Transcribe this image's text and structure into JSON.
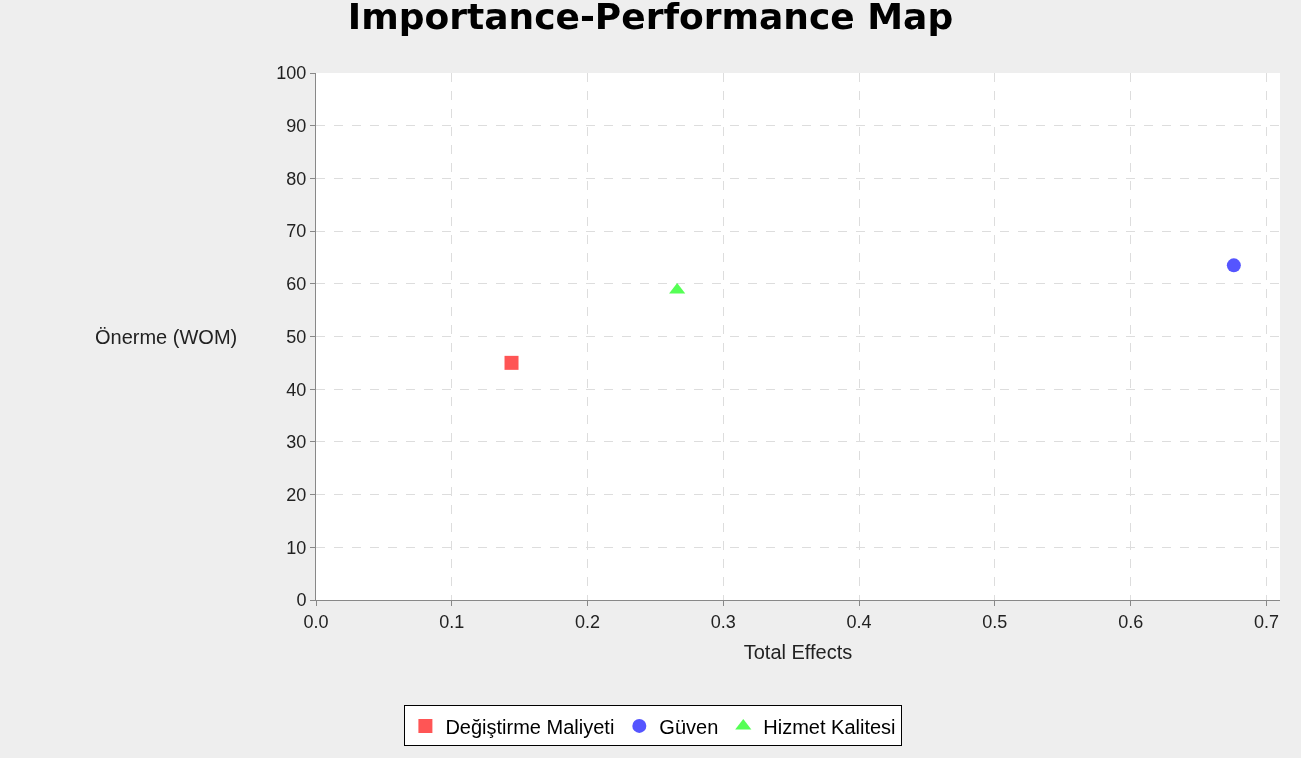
{
  "chart_data": {
    "type": "scatter",
    "title": "Importance-Performance Map",
    "xlabel": "Total Effects",
    "ylabel": "Önerme (WOM)",
    "xlim": [
      0,
      0.71
    ],
    "xticks": [
      {
        "value": 0,
        "label": "0.0"
      },
      0.1,
      0.2,
      0.3,
      0.4,
      0.5,
      0.6,
      0.7
    ],
    "ylim": [
      0,
      100
    ],
    "yticks": [
      0,
      10,
      20,
      30,
      40,
      50,
      60,
      70,
      80,
      90,
      100
    ],
    "grid": true,
    "legend": "bottom",
    "series": [
      {
        "name": "Değiştirme Maliyeti",
        "color": "#ff5555",
        "marker": "square",
        "x": [
          0.144
        ],
        "values": [
          45.0
        ]
      },
      {
        "name": "Güven",
        "color": "#5555ff",
        "marker": "circle",
        "x": [
          0.676
        ],
        "values": [
          63.5
        ]
      },
      {
        "name": "Hizmet Kalitesi",
        "color": "#55ff55",
        "marker": "triangle",
        "x": [
          0.266
        ],
        "values": [
          58.8
        ]
      }
    ]
  }
}
